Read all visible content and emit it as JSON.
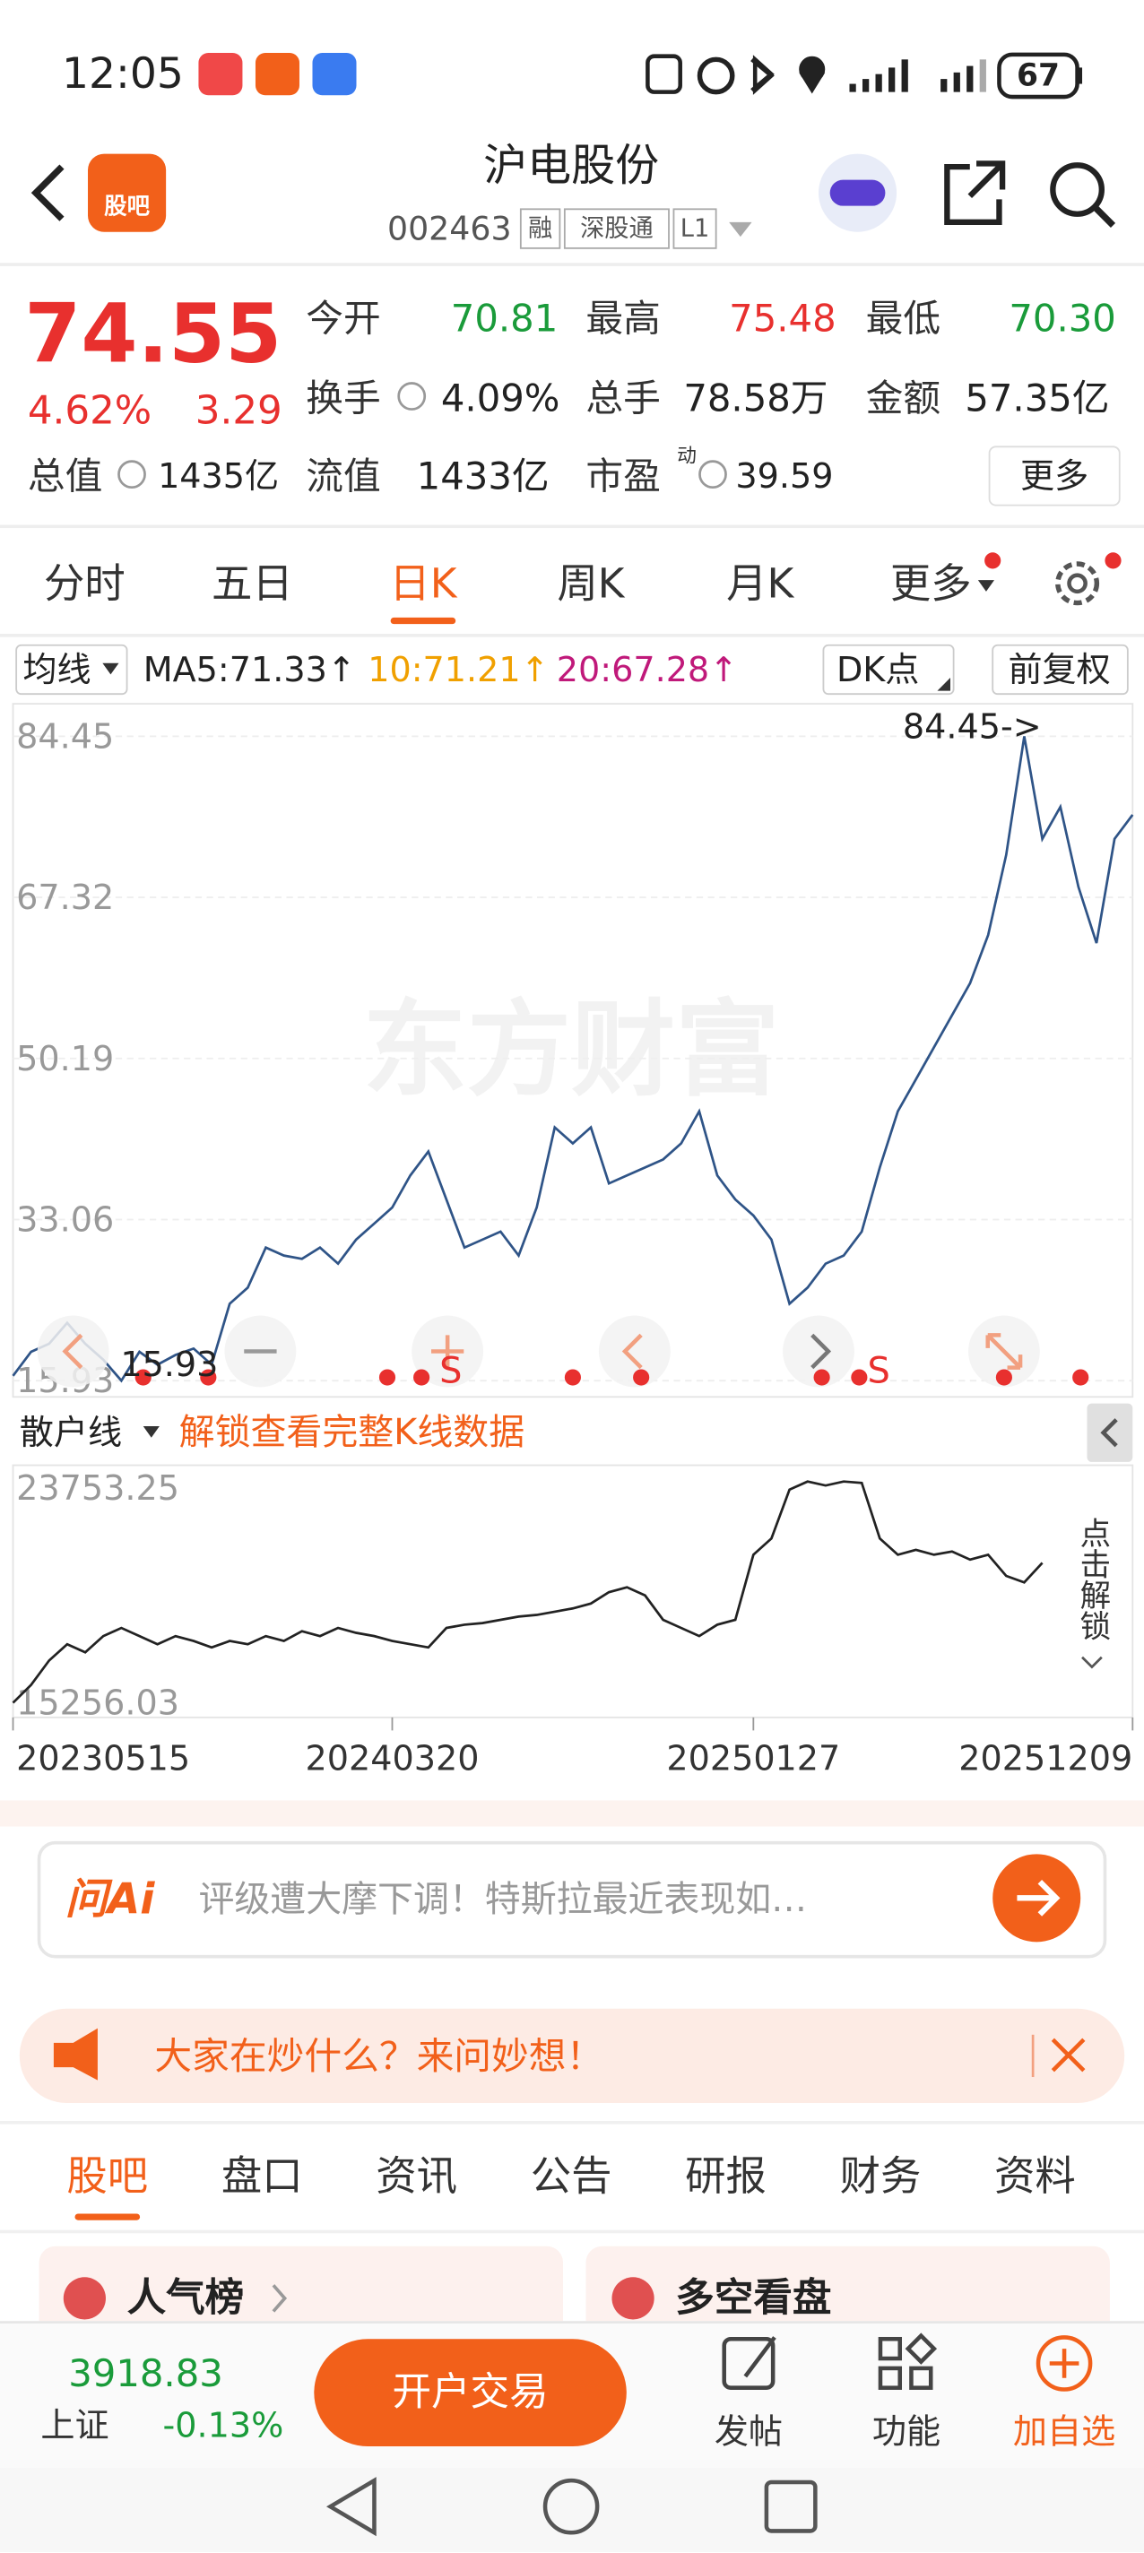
{
  "status_bar": {
    "time": "12:05",
    "battery": "67"
  },
  "header": {
    "logo": "股吧",
    "title": "沪电股份",
    "code": "002463",
    "tags": [
      "融",
      "深股通",
      "L1"
    ]
  },
  "quote": {
    "price": "74.55",
    "change_pct": "4.62%",
    "change": "3.29",
    "fields": [
      {
        "label": "今开",
        "value": "70.81"
      },
      {
        "label": "最高",
        "value": "75.48"
      },
      {
        "label": "最低",
        "value": "70.30"
      },
      {
        "label": "换手",
        "value": "4.09%"
      },
      {
        "label": "总手",
        "value": "78.58万"
      },
      {
        "label": "金额",
        "value": "57.35亿"
      },
      {
        "label": "总值",
        "value": "1435亿"
      },
      {
        "label": "流值",
        "value": "1433亿"
      },
      {
        "label": "市盈",
        "sup": "动",
        "value": "39.59"
      }
    ],
    "more": "更多"
  },
  "period_tabs": [
    "分时",
    "五日",
    "日K",
    "周K",
    "月K",
    "更多"
  ],
  "indicator_bar": {
    "selector": "均线",
    "ma5": "MA5:71.33↑",
    "ma10": "10:71.21↑",
    "ma20": "20:67.28↑",
    "dk": "DK点",
    "adjust": "前复权"
  },
  "chart_data": [
    {
      "type": "line",
      "color": "#2f5487",
      "watermark": "东方财富",
      "ylim": [
        15.93,
        84.45
      ],
      "yticks": [
        84.45,
        67.32,
        50.19,
        33.06,
        15.93
      ],
      "grid": true,
      "annotations": [
        "84.45->",
        "15.93"
      ],
      "signal_labels": [
        "S",
        "S"
      ],
      "categories": [
        "20230515",
        null,
        null,
        null,
        null,
        null,
        null,
        null,
        null,
        null,
        null,
        null,
        null,
        null,
        null,
        null,
        null,
        null,
        null,
        null,
        null,
        "20240320",
        null,
        null,
        null,
        null,
        null,
        null,
        null,
        null,
        null,
        null,
        null,
        null,
        null,
        null,
        null,
        null,
        null,
        null,
        null,
        "20250127",
        null,
        null,
        null,
        null,
        null,
        null,
        null,
        null,
        null,
        null,
        null,
        null,
        null,
        null,
        null,
        null,
        null,
        null,
        null,
        null,
        "20251209"
      ],
      "values": [
        16.44,
        19.0,
        19.85,
        22.07,
        19.85,
        18.15,
        15.93,
        19.0,
        17.63,
        18.66,
        19.34,
        17.63,
        24.11,
        25.82,
        30.08,
        29.23,
        28.88,
        30.08,
        28.37,
        30.93,
        32.63,
        34.34,
        37.75,
        40.3,
        35.19,
        30.08,
        30.93,
        31.78,
        29.23,
        34.34,
        42.86,
        41.16,
        42.86,
        36.9,
        37.75,
        38.6,
        39.45,
        41.16,
        44.57,
        37.75,
        35.19,
        33.49,
        30.93,
        24.11,
        25.82,
        28.37,
        29.23,
        31.78,
        38.6,
        44.57,
        47.97,
        51.38,
        54.79,
        58.2,
        63.32,
        71.84,
        84.45,
        73.54,
        76.95,
        68.43,
        62.46,
        73.54,
        76.1
      ]
    },
    {
      "type": "line",
      "color": "#222222",
      "ylim": [
        15256.03,
        23753.25
      ],
      "yticks": [
        23753.25,
        15256.03
      ],
      "grid": false,
      "values": [
        15256.03,
        15943.3,
        16880.5,
        17505.3,
        17192.9,
        17817.7,
        18130.1,
        17817.7,
        17505.3,
        17817.7,
        17630.3,
        17380.3,
        17630.3,
        17505.3,
        17817.7,
        17630.3,
        18005.1,
        17817.7,
        18130.1,
        17942.7,
        17817.7,
        17630.3,
        17505.3,
        17380.3,
        18130.1,
        18255.1,
        18317.6,
        18442.5,
        18567.5,
        18630.0,
        18754.9,
        18879.9,
        19067.3,
        19504.7,
        19692.1,
        19379.7,
        18442.5,
        18130.1,
        17817.7,
        18255.1,
        18442.5,
        20941.7,
        21566.5,
        23440.9,
        23753.25,
        23600,
        23753.25,
        23700,
        21566.5,
        20941.7,
        21129.1,
        20941.7,
        21066.7,
        20754.3,
        20941.7,
        20129.5,
        19879.6,
        20629.3,
        null,
        null,
        null,
        null,
        null
      ]
    }
  ],
  "sub_indicator": {
    "selector": "散户线",
    "unlock": "解锁查看完整K线数据",
    "side_unlock": "点击解锁"
  },
  "ai_box": {
    "logo": "问Ai",
    "prompt": "评级遭大摩下调！特斯拉最近表现如…"
  },
  "banner": {
    "text": "大家在炒什么？来问妙想！"
  },
  "content_tabs": [
    "股吧",
    "盘口",
    "资讯",
    "公告",
    "研报",
    "财务",
    "资料"
  ],
  "cards": [
    "人气榜",
    "多空看盘"
  ],
  "bottom_bar": {
    "index_value": "3918.83",
    "index_name": "上证",
    "index_change": "-0.13%",
    "trade": "开户交易",
    "actions": [
      "发帖",
      "功能",
      "加自选"
    ]
  }
}
